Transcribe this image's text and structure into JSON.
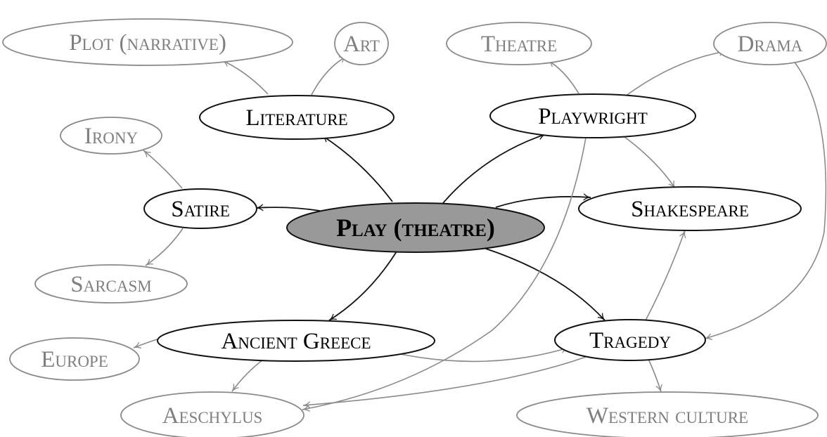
{
  "diagram": {
    "nodes": [
      {
        "id": "play",
        "label": "Play (theatre)",
        "level": "center"
      },
      {
        "id": "literature",
        "label": "Literature",
        "level": "primary"
      },
      {
        "id": "playwright",
        "label": "Playwright",
        "level": "primary"
      },
      {
        "id": "satire",
        "label": "Satire",
        "level": "primary"
      },
      {
        "id": "shakespeare",
        "label": "Shakespeare",
        "level": "primary"
      },
      {
        "id": "ancient_greece",
        "label": "Ancient Greece",
        "level": "primary"
      },
      {
        "id": "tragedy",
        "label": "Tragedy",
        "level": "primary"
      },
      {
        "id": "plot",
        "label": "Plot (narrative)",
        "level": "secondary"
      },
      {
        "id": "art",
        "label": "Art",
        "level": "secondary"
      },
      {
        "id": "theatre",
        "label": "Theatre",
        "level": "secondary"
      },
      {
        "id": "drama",
        "label": "Drama",
        "level": "secondary"
      },
      {
        "id": "irony",
        "label": "Irony",
        "level": "secondary"
      },
      {
        "id": "sarcasm",
        "label": "Sarcasm",
        "level": "secondary"
      },
      {
        "id": "europe",
        "label": "Europe",
        "level": "secondary"
      },
      {
        "id": "aeschylus",
        "label": "Aeschylus",
        "level": "secondary"
      },
      {
        "id": "western_culture",
        "label": "Western culture",
        "level": "secondary"
      }
    ],
    "edges": [
      {
        "from": "play",
        "to": "literature",
        "level": "primary"
      },
      {
        "from": "play",
        "to": "playwright",
        "level": "primary"
      },
      {
        "from": "play",
        "to": "satire",
        "level": "primary"
      },
      {
        "from": "play",
        "to": "shakespeare",
        "level": "primary"
      },
      {
        "from": "play",
        "to": "ancient_greece",
        "level": "primary"
      },
      {
        "from": "play",
        "to": "tragedy",
        "level": "primary"
      },
      {
        "from": "literature",
        "to": "plot",
        "level": "secondary"
      },
      {
        "from": "literature",
        "to": "art",
        "level": "secondary"
      },
      {
        "from": "playwright",
        "to": "theatre",
        "level": "secondary"
      },
      {
        "from": "playwright",
        "to": "drama",
        "level": "secondary"
      },
      {
        "from": "playwright",
        "to": "shakespeare",
        "level": "secondary"
      },
      {
        "from": "playwright",
        "to": "aeschylus",
        "level": "secondary"
      },
      {
        "from": "satire",
        "to": "irony",
        "level": "secondary"
      },
      {
        "from": "satire",
        "to": "sarcasm",
        "level": "secondary"
      },
      {
        "from": "ancient_greece",
        "to": "europe",
        "level": "secondary"
      },
      {
        "from": "ancient_greece",
        "to": "aeschylus",
        "level": "secondary"
      },
      {
        "from": "ancient_greece",
        "to": "tragedy",
        "level": "secondary"
      },
      {
        "from": "tragedy",
        "to": "shakespeare",
        "level": "secondary"
      },
      {
        "from": "tragedy",
        "to": "western_culture",
        "level": "secondary"
      },
      {
        "from": "tragedy",
        "to": "aeschylus",
        "level": "secondary"
      },
      {
        "from": "drama",
        "to": "tragedy",
        "level": "secondary"
      }
    ]
  },
  "colors": {
    "center_fill": "#999999",
    "primary_stroke": "#111111",
    "primary_text": "#000000",
    "secondary_stroke": "#8a8a8a",
    "secondary_text": "#7f7f7f",
    "background": "#ffffff"
  }
}
